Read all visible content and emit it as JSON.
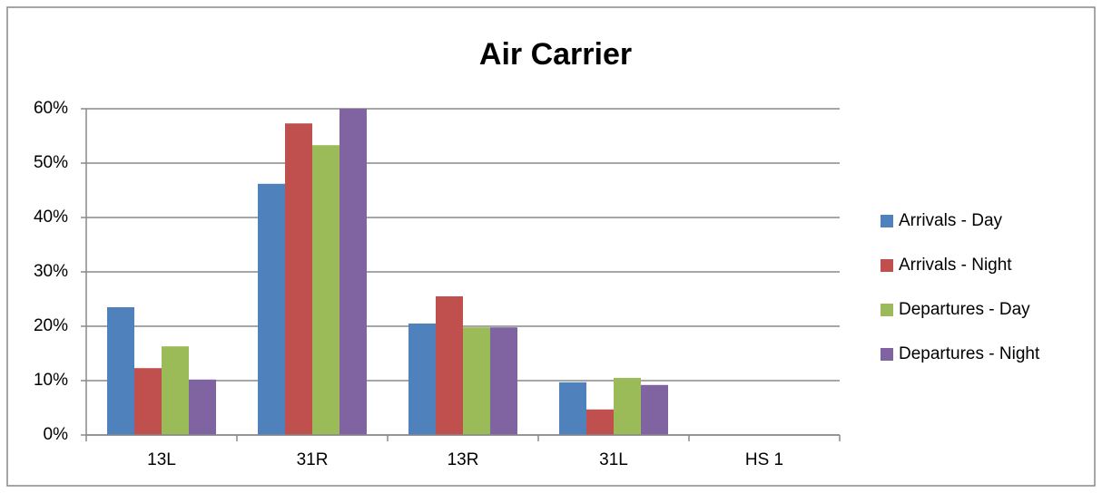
{
  "chart_data": {
    "type": "bar",
    "title": "Air Carrier",
    "categories": [
      "13L",
      "31R",
      "13R",
      "31L",
      "HS 1"
    ],
    "series": [
      {
        "name": "Arrivals - Day",
        "color": "#4f81bd",
        "values": [
          23.5,
          46.2,
          20.5,
          9.7,
          0
        ]
      },
      {
        "name": "Arrivals - Night",
        "color": "#c0504d",
        "values": [
          12.3,
          57.3,
          25.5,
          4.7,
          0
        ]
      },
      {
        "name": "Departures - Day",
        "color": "#9bbb59",
        "values": [
          16.3,
          53.3,
          19.8,
          10.5,
          0
        ]
      },
      {
        "name": "Departures - Night",
        "color": "#8064a2",
        "values": [
          10.2,
          60,
          19.8,
          9.2,
          0
        ]
      }
    ],
    "ylim": [
      0,
      60
    ],
    "yticks": [
      {
        "value": 0,
        "label": "0%"
      },
      {
        "value": 10,
        "label": "10%"
      },
      {
        "value": 20,
        "label": "20%"
      },
      {
        "value": 30,
        "label": "30%"
      },
      {
        "value": 40,
        "label": "40%"
      },
      {
        "value": 50,
        "label": "50%"
      },
      {
        "value": 60,
        "label": "60%"
      }
    ],
    "grid": true,
    "legend": "right"
  }
}
